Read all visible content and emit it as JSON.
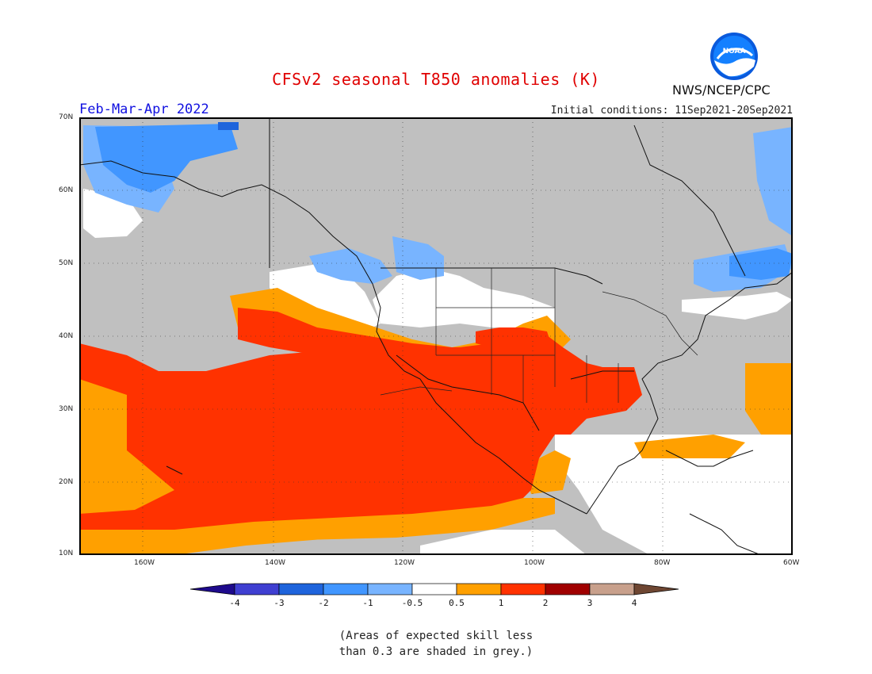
{
  "header": {
    "title": "CFSv2 seasonal T850 anomalies (K)",
    "period": "Feb-Mar-Apr 2022",
    "initial_conditions": "Initial conditions: 11Sep2021-20Sep2021",
    "agency": "NWS/NCEP/CPC",
    "logo_text": "NOAA"
  },
  "map": {
    "lat_labels": [
      "70N",
      "60N",
      "50N",
      "40N",
      "30N",
      "20N",
      "10N"
    ],
    "lon_labels": [
      "160W",
      "140W",
      "120W",
      "100W",
      "80W",
      "60W"
    ],
    "grey_meaning": "skill < 0.3"
  },
  "legend": {
    "ticks": [
      "-4",
      "-3",
      "-2",
      "-1",
      "-0.5",
      "0.5",
      "1",
      "2",
      "3",
      "4"
    ],
    "colors": [
      "#1e0a8c",
      "#3f3fd1",
      "#1e64dc",
      "#4196ff",
      "#78b4ff",
      "#ffffff",
      "#ffa000",
      "#ff3200",
      "#a00000",
      "#c8a08c",
      "#6e4632"
    ],
    "grey_color": "#c0c0c0"
  },
  "note": {
    "line1": "(Areas of expected skill less",
    "line2": "than 0.3 are shaded in grey.)"
  }
}
